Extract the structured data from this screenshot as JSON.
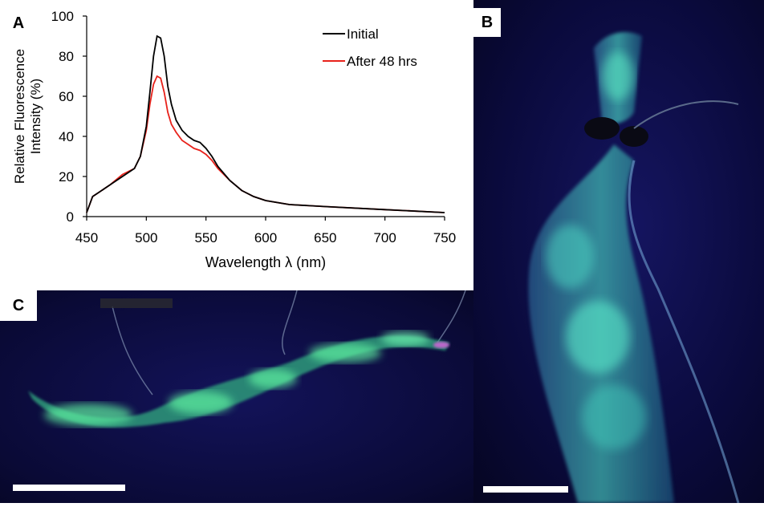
{
  "panels": {
    "a": {
      "label": "A"
    },
    "b": {
      "label": "B"
    },
    "c": {
      "label": "C"
    }
  },
  "chart_data": {
    "type": "line",
    "xlabel": "Wavelength λ (nm)",
    "ylabel": "Relative Fluorescence Intensity (%)",
    "ylabel_lines": [
      "Relative Fluorescence",
      "Intensity (%)"
    ],
    "xlim": [
      450,
      750
    ],
    "ylim": [
      0,
      100
    ],
    "xticks": [
      450,
      500,
      550,
      600,
      650,
      700,
      750
    ],
    "yticks": [
      0,
      20,
      40,
      60,
      80,
      100
    ],
    "legend_position": "top-right",
    "grid": false,
    "series": [
      {
        "name": "Initial",
        "color": "#000000",
        "x": [
          450,
          455,
          460,
          470,
          480,
          490,
          495,
          500,
          503,
          506,
          509,
          512,
          515,
          518,
          521,
          525,
          530,
          535,
          540,
          545,
          550,
          555,
          560,
          570,
          580,
          590,
          600,
          620,
          650,
          700,
          750
        ],
        "y": [
          2,
          10,
          12,
          16,
          20,
          24,
          30,
          45,
          62,
          80,
          90,
          89,
          80,
          65,
          56,
          48,
          43,
          40,
          38,
          37,
          34,
          30,
          25,
          18,
          13,
          10,
          8,
          6,
          5,
          3.5,
          2
        ]
      },
      {
        "name": "After 48 hrs",
        "color": "#e8221b",
        "x": [
          450,
          455,
          460,
          470,
          480,
          490,
          495,
          500,
          503,
          506,
          509,
          512,
          515,
          518,
          521,
          525,
          530,
          535,
          540,
          545,
          550,
          555,
          560,
          570,
          580,
          590,
          600,
          620,
          650,
          700,
          750
        ],
        "y": [
          2,
          10,
          12,
          16,
          21,
          24,
          30,
          43,
          56,
          66,
          70,
          69,
          62,
          52,
          46,
          42,
          38,
          36,
          34,
          33,
          31,
          28,
          24,
          18,
          13,
          10,
          8,
          6,
          5,
          3.5,
          2
        ]
      }
    ]
  }
}
